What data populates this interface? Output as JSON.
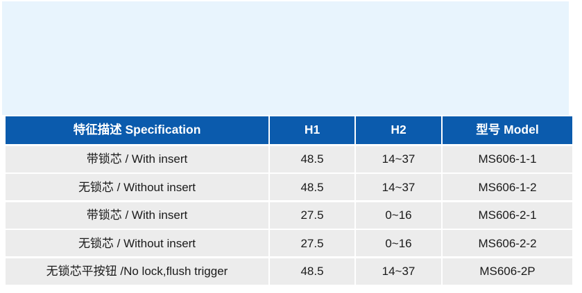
{
  "product_image": {
    "description": "empty light blue product image placeholder",
    "background": "#e8f4fd"
  },
  "table": {
    "colors": {
      "header_bg": "#0b5bad",
      "header_text": "#ffffff",
      "row_bg": "#ececec",
      "body_text": "#1a1a1a",
      "separator": "#ffffff"
    },
    "header": {
      "spec": "特征描述 Specification",
      "h1": "H1",
      "h2": "H2",
      "model": "型号 Model"
    },
    "rows": [
      {
        "spec": "带锁芯 / With insert",
        "h1": "48.5",
        "h2": "14~37",
        "model": "MS606-1-1"
      },
      {
        "spec": "无锁芯 / Without insert",
        "h1": "48.5",
        "h2": "14~37",
        "model": "MS606-1-2"
      },
      {
        "spec": "带锁芯 / With insert",
        "h1": "27.5",
        "h2": "0~16",
        "model": "MS606-2-1"
      },
      {
        "spec": "无锁芯 / Without insert",
        "h1": "27.5",
        "h2": "0~16",
        "model": "MS606-2-2"
      },
      {
        "spec": "无锁芯平按钮 /No lock,flush trigger",
        "h1": "48.5",
        "h2": "14~37",
        "model": "MS606-2P"
      }
    ]
  }
}
